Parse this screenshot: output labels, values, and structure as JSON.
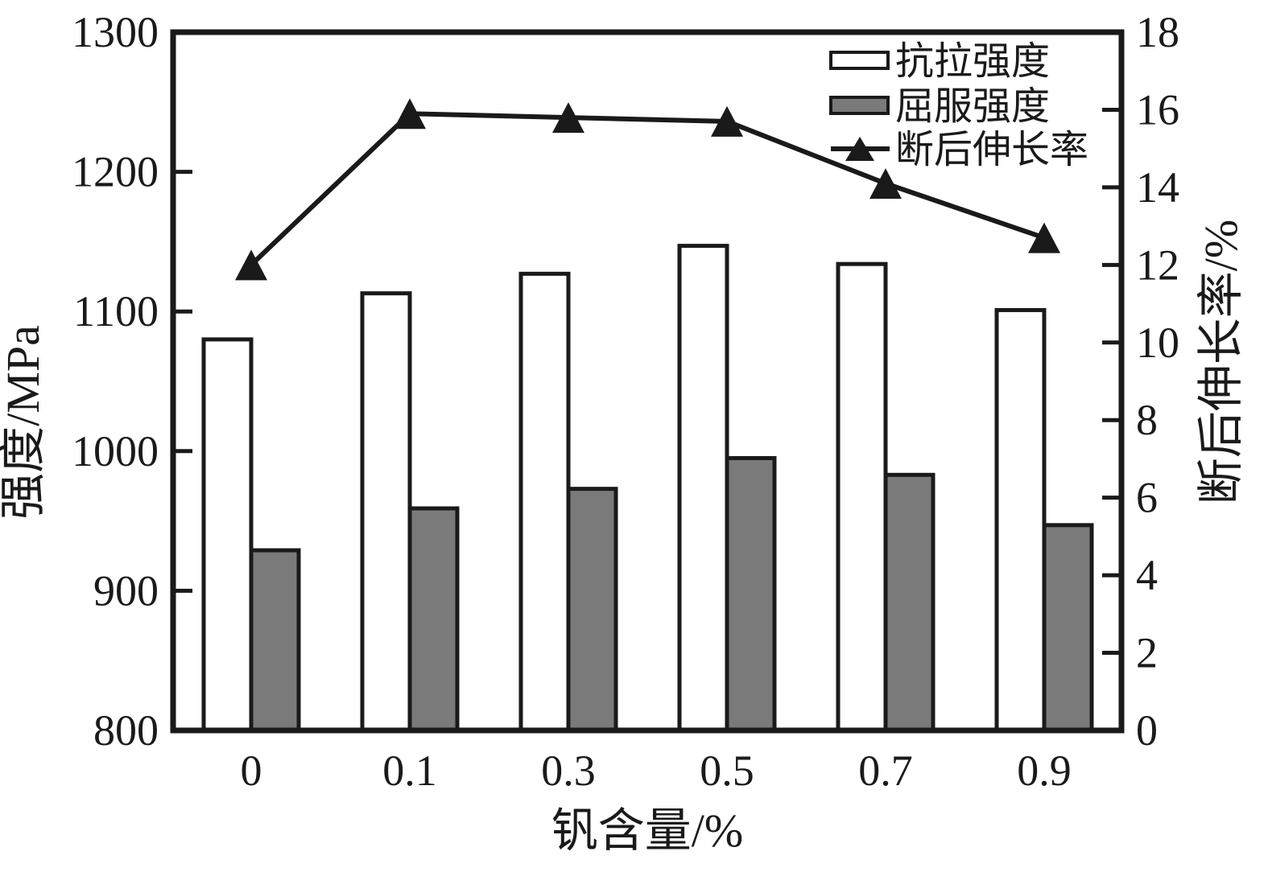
{
  "chart_data": {
    "type": "bar+line",
    "title": "",
    "categories": [
      "0",
      "0.1",
      "0.3",
      "0.5",
      "0.7",
      "0.9"
    ],
    "series": [
      {
        "id": "tensile",
        "name": "抗拉强度",
        "type": "bar",
        "axis": "left",
        "fill": "white",
        "values": [
          1080,
          1113,
          1127,
          1147,
          1134,
          1101
        ]
      },
      {
        "id": "yield",
        "name": "屈服强度",
        "type": "bar",
        "axis": "left",
        "fill": "gray",
        "values": [
          929,
          959,
          973,
          995,
          983,
          947
        ]
      },
      {
        "id": "elongation",
        "name": "断后伸长率",
        "type": "line",
        "axis": "right",
        "marker": "triangle",
        "values": [
          12.0,
          15.9,
          15.8,
          15.7,
          14.1,
          12.7
        ]
      }
    ],
    "left_axis": {
      "label": "强度/MPa",
      "min": 800,
      "max": 1300,
      "ticks": [
        800,
        900,
        1000,
        1100,
        1200,
        1300
      ]
    },
    "right_axis": {
      "label": "断后伸长率/%",
      "min": 0,
      "max": 18,
      "ticks": [
        0,
        2,
        4,
        6,
        8,
        10,
        12,
        14,
        16,
        18
      ]
    },
    "x_axis": {
      "label": "钒含量/%"
    },
    "legend_position": "top-right",
    "grid": false,
    "colors": {
      "bar_white": "#ffffff",
      "bar_gray": "#7a7a7a",
      "stroke": "#1a1a1a",
      "background": "#ffffff"
    }
  }
}
